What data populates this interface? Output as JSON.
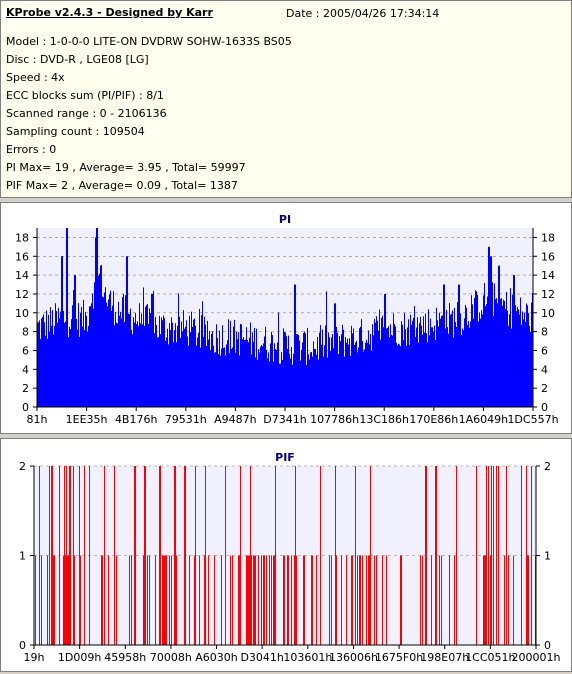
{
  "info": {
    "title": "KProbe v2.4.3 - Designed by Karr",
    "date": "Date : 2005/04/26 17:34:14",
    "lines": [
      "Model : 1-0-0-0 LITE-ON DVDRW SOHW-1633S BS05",
      "Disc : DVD-R , LGE08 [LG]",
      "Speed : 4x",
      "ECC blocks sum (PI/PIF) : 8/1",
      "Scanned range : 0 - 2106136",
      "Sampling count : 109504",
      "Errors : 0",
      "PI Max= 19 , Average= 3.95 , Total= 59997",
      "PIF Max= 2 , Average= 0.09 , Total= 1387"
    ]
  },
  "colors": {
    "pi": "#0000ff",
    "pif": "#ff0000",
    "title": "#000080",
    "gridline": "#808080",
    "plot_bg": "#f0f0ff"
  },
  "chart_data": [
    {
      "type": "bar",
      "title": "PI",
      "ylim": [
        0,
        19
      ],
      "yticks": [
        0,
        2,
        4,
        6,
        8,
        10,
        12,
        14,
        16,
        18
      ],
      "xtick_labels": [
        "81h",
        "1EE35h",
        "4B176h",
        "79531h",
        "A9487h",
        "D7341h",
        "107786h",
        "13C186h",
        "170E86h",
        "1A6049h",
        "1DC557h"
      ],
      "grid": true,
      "profile": [
        [
          0,
          8
        ],
        [
          0.05,
          9
        ],
        [
          0.1,
          9
        ],
        [
          0.11,
          12
        ],
        [
          0.115,
          12
        ],
        [
          0.12,
          14
        ],
        [
          0.125,
          13
        ],
        [
          0.13,
          13
        ],
        [
          0.14,
          11
        ],
        [
          0.16,
          10
        ],
        [
          0.2,
          9
        ],
        [
          0.25,
          8
        ],
        [
          0.3,
          8
        ],
        [
          0.35,
          7
        ],
        [
          0.4,
          7
        ],
        [
          0.5,
          6
        ],
        [
          0.55,
          6
        ],
        [
          0.6,
          6.5
        ],
        [
          0.65,
          7
        ],
        [
          0.7,
          8
        ],
        [
          0.75,
          8
        ],
        [
          0.8,
          8.5
        ],
        [
          0.85,
          9
        ],
        [
          0.88,
          10
        ],
        [
          0.9,
          11
        ],
        [
          0.92,
          11
        ],
        [
          0.95,
          10
        ],
        [
          1.0,
          9
        ]
      ],
      "peaks": [
        [
          0.06,
          19
        ],
        [
          0.05,
          16
        ],
        [
          0.075,
          14
        ],
        [
          0.12,
          19
        ],
        [
          0.118,
          18
        ],
        [
          0.128,
          15
        ],
        [
          0.18,
          16
        ],
        [
          0.23,
          12
        ],
        [
          0.52,
          13
        ],
        [
          0.6,
          11
        ],
        [
          0.7,
          12
        ],
        [
          0.82,
          13
        ],
        [
          0.85,
          13
        ],
        [
          0.91,
          17
        ],
        [
          0.915,
          16
        ],
        [
          0.93,
          15
        ],
        [
          0.96,
          14
        ]
      ]
    },
    {
      "type": "bar",
      "title": "PIF",
      "ylim": [
        0,
        2
      ],
      "yticks": [
        0,
        1,
        2
      ],
      "xtick_labels": [
        "19h",
        "1D009h",
        "45958h",
        "70008h",
        "A6030h",
        "D3041h",
        "103601h",
        "136006h",
        "1675F0h",
        "198E07h",
        "1CC051h",
        "200001h"
      ],
      "grid": true,
      "twos": [
        0.01,
        0.03,
        0.035,
        0.05,
        0.06,
        0.063,
        0.07,
        0.072,
        0.078,
        0.09,
        0.1,
        0.11,
        0.14,
        0.16,
        0.2,
        0.22,
        0.25,
        0.28,
        0.3,
        0.32,
        0.34,
        0.38,
        0.41,
        0.43,
        0.48,
        0.52,
        0.57,
        0.6,
        0.64,
        0.67,
        0.78,
        0.8,
        0.84,
        0.88,
        0.9,
        0.905,
        0.91,
        0.915,
        0.92,
        0.925,
        0.94,
        0.97,
        0.98,
        0.99
      ],
      "ones_density": 0.22
    }
  ]
}
